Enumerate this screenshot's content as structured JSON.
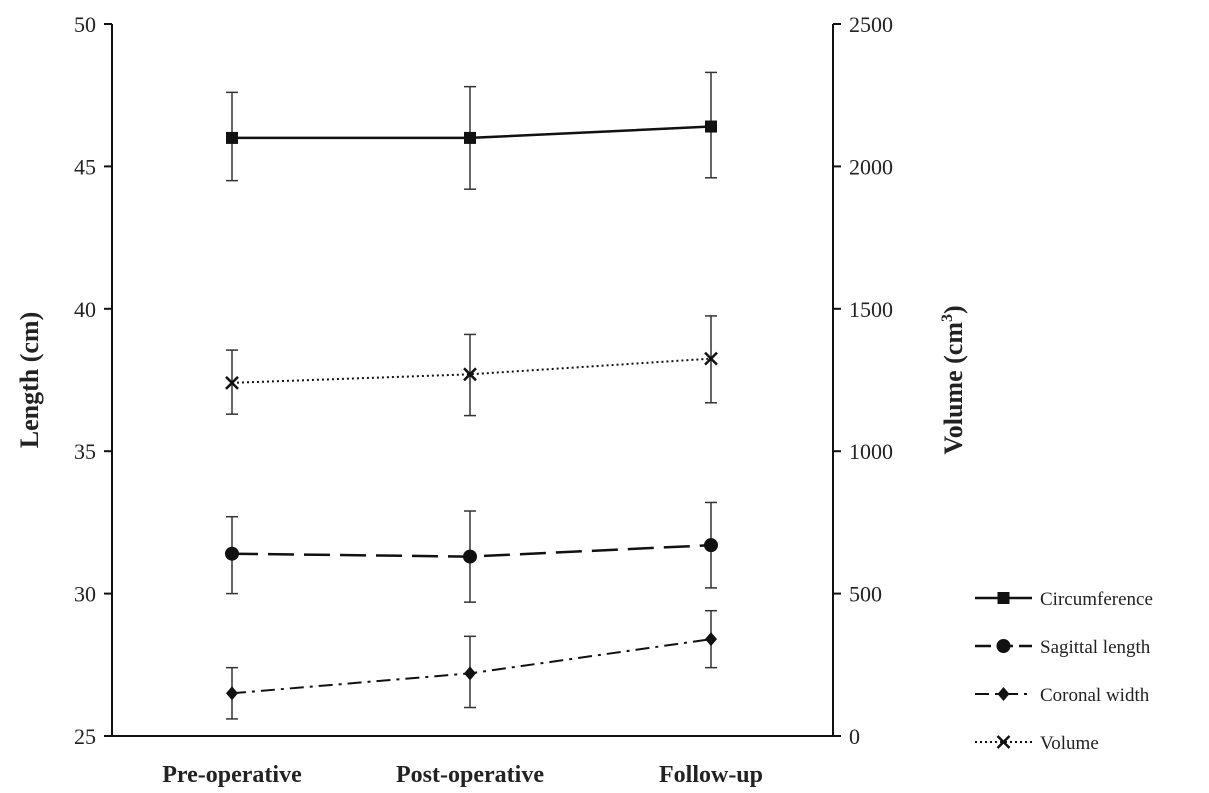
{
  "chart_data": {
    "type": "line",
    "categories": [
      "Pre-operative",
      "Post-operative",
      "Follow-up"
    ],
    "y_left": {
      "label_text": "Length (cm)",
      "ticks": [
        "25",
        "30",
        "35",
        "40",
        "45",
        "50"
      ],
      "range": [
        25,
        50
      ]
    },
    "y_right": {
      "label_main": "Volume (cm",
      "label_sup": "3",
      "label_end": ")",
      "ticks": [
        "0",
        "500",
        "1000",
        "1500",
        "2000",
        "2500"
      ],
      "range": [
        0,
        2500
      ]
    },
    "series": [
      {
        "name": "Circumference",
        "axis": "left",
        "marker": "square",
        "dash": "solid",
        "values": [
          46.0,
          46.0,
          46.4
        ],
        "err_low": [
          44.5,
          44.2,
          44.6
        ],
        "err_high": [
          47.6,
          47.8,
          48.3
        ]
      },
      {
        "name": "Sagittal length",
        "axis": "left",
        "marker": "circle",
        "dash": "longdash",
        "values": [
          31.4,
          31.3,
          31.7
        ],
        "err_low": [
          30.0,
          29.7,
          30.2
        ],
        "err_high": [
          32.7,
          32.9,
          33.2
        ]
      },
      {
        "name": "Coronal width",
        "axis": "left",
        "marker": "diamond",
        "dash": "dashdot",
        "values": [
          26.5,
          27.2,
          28.4
        ],
        "err_low": [
          25.6,
          26.0,
          27.4
        ],
        "err_high": [
          27.4,
          28.5,
          29.4
        ]
      },
      {
        "name": "Volume",
        "axis": "right",
        "marker": "x",
        "dash": "dotted",
        "values": [
          1240,
          1270,
          1325
        ],
        "err_low": [
          1130,
          1125,
          1170
        ],
        "err_high": [
          1355,
          1410,
          1475
        ]
      }
    ],
    "legend_position": "bottom-right"
  }
}
